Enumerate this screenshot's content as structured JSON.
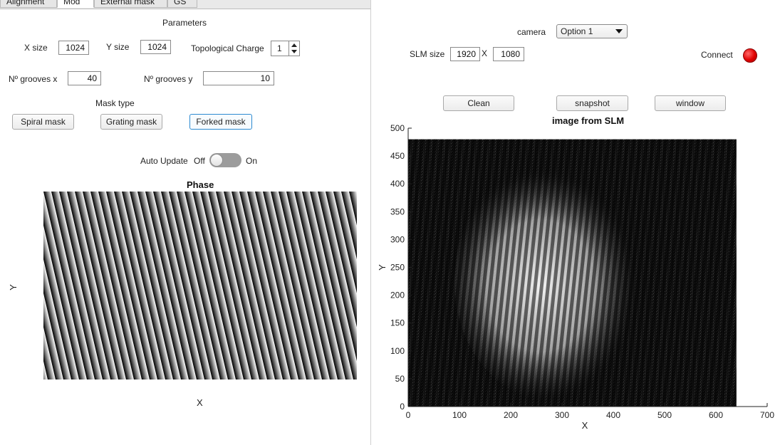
{
  "tabs": [
    {
      "label": "Alignment"
    },
    {
      "label": "Mod"
    },
    {
      "label": "External mask"
    },
    {
      "label": "GS"
    }
  ],
  "params": {
    "heading": "Parameters",
    "x_size_label": "X size",
    "x_size_value": "1024",
    "y_size_label": "Y size",
    "y_size_value": "1024",
    "topo_label": "Topological Charge",
    "topo_value": "1",
    "grooves_x_label": "Nº grooves x",
    "grooves_x_value": "40",
    "grooves_y_label": "Nº grooves y",
    "grooves_y_value": "10"
  },
  "mask": {
    "heading": "Mask type",
    "spiral": "Spiral mask",
    "grating": "Grating mask",
    "forked": "Forked mask",
    "selected": "forked"
  },
  "auto_update": {
    "label": "Auto Update",
    "off": "Off",
    "on": "On",
    "state": "Off"
  },
  "phase_plot": {
    "title": "Phase",
    "xlabel": "X",
    "ylabel": "Y"
  },
  "camera": {
    "label": "camera",
    "selected": "Option 1"
  },
  "slm": {
    "label": "SLM size",
    "width": "1920",
    "separator": "X",
    "height": "1080"
  },
  "connect": {
    "label": "Connect",
    "status_color": "#e10000"
  },
  "buttons": {
    "clean": "Clean",
    "snapshot": "snapshot",
    "window": "window"
  },
  "chart_data": {
    "type": "heatmap",
    "title": "image from SLM",
    "xlabel": "X",
    "ylabel": "Y",
    "xlim": [
      0,
      700
    ],
    "ylim": [
      0,
      500
    ],
    "xticks": [
      0,
      100,
      200,
      300,
      400,
      500,
      600,
      700
    ],
    "yticks": [
      0,
      50,
      100,
      150,
      200,
      250,
      300,
      350,
      400,
      450,
      500
    ],
    "image_extent": {
      "x": [
        0,
        640
      ],
      "y": [
        0,
        480
      ]
    },
    "colormap": "gray",
    "grid": false
  }
}
